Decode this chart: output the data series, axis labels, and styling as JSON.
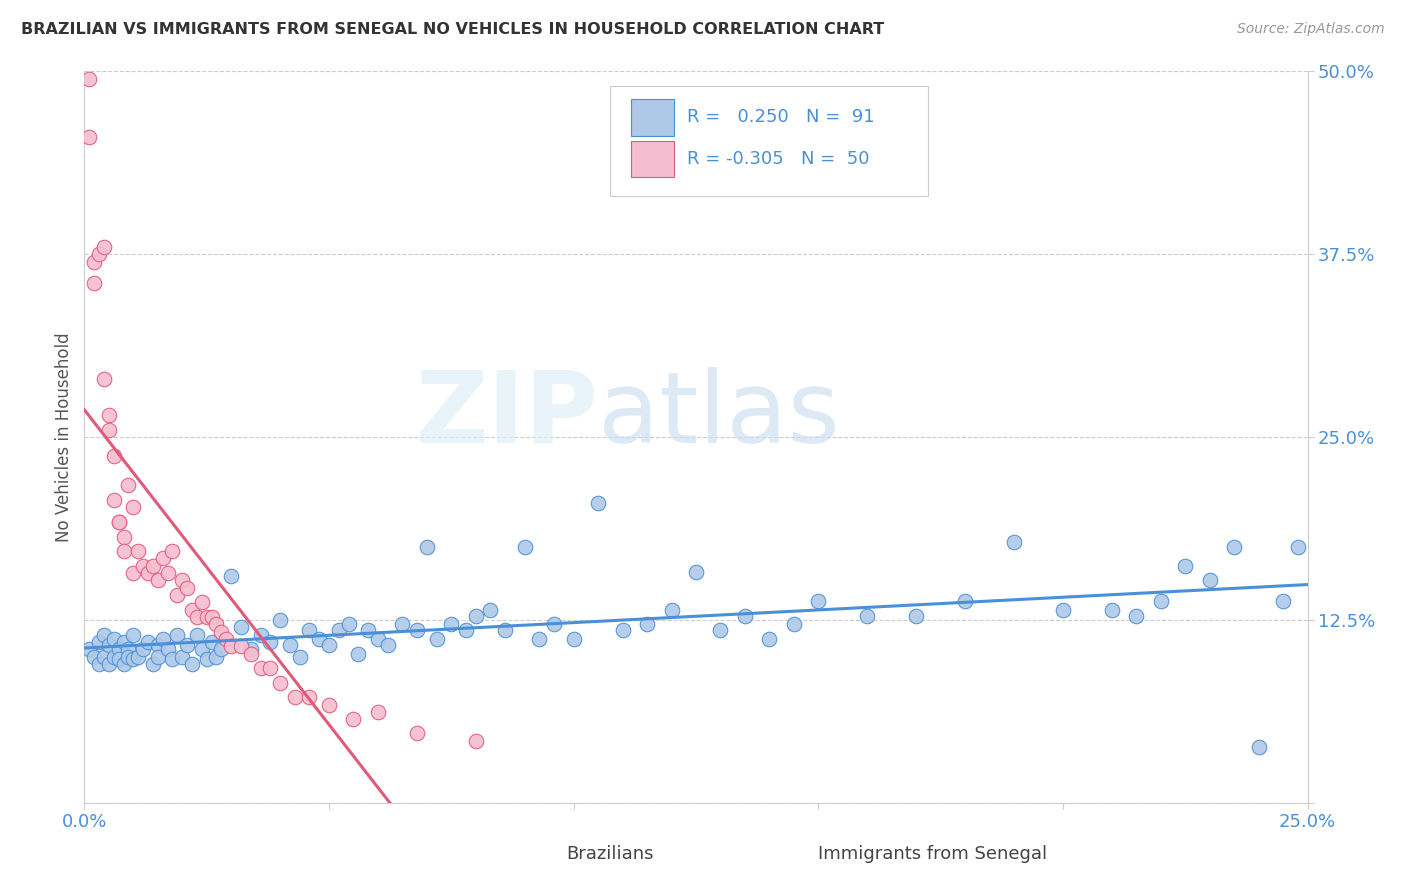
{
  "title": "BRAZILIAN VS IMMIGRANTS FROM SENEGAL NO VEHICLES IN HOUSEHOLD CORRELATION CHART",
  "source": "Source: ZipAtlas.com",
  "ylabel": "No Vehicles in Household",
  "x_min": 0.0,
  "x_max": 0.25,
  "y_min": 0.0,
  "y_max": 0.5,
  "y_ticks": [
    0.0,
    0.125,
    0.25,
    0.375,
    0.5
  ],
  "y_tick_labels": [
    "",
    "12.5%",
    "25.0%",
    "37.5%",
    "50.0%"
  ],
  "grid_color": "#cccccc",
  "background_color": "#ffffff",
  "brazilian_color": "#aec9e8",
  "senegal_color": "#f5bdd0",
  "brazilian_line_color": "#4a90d9",
  "senegal_line_color": "#e05a7a",
  "tick_label_color": "#4a90d9",
  "legend_r_brazilian": " 0.250",
  "legend_n_brazilian": "91",
  "legend_r_senegal": "-0.305",
  "legend_n_senegal": "50",
  "brazilian_x": [
    0.001,
    0.002,
    0.003,
    0.003,
    0.004,
    0.004,
    0.005,
    0.005,
    0.006,
    0.006,
    0.007,
    0.007,
    0.008,
    0.008,
    0.009,
    0.009,
    0.01,
    0.01,
    0.011,
    0.012,
    0.013,
    0.014,
    0.015,
    0.015,
    0.016,
    0.017,
    0.018,
    0.019,
    0.02,
    0.021,
    0.022,
    0.023,
    0.024,
    0.025,
    0.026,
    0.027,
    0.028,
    0.03,
    0.032,
    0.034,
    0.036,
    0.038,
    0.04,
    0.042,
    0.044,
    0.046,
    0.048,
    0.05,
    0.052,
    0.054,
    0.056,
    0.058,
    0.06,
    0.062,
    0.065,
    0.068,
    0.07,
    0.072,
    0.075,
    0.078,
    0.08,
    0.083,
    0.086,
    0.09,
    0.093,
    0.096,
    0.1,
    0.105,
    0.11,
    0.115,
    0.12,
    0.125,
    0.13,
    0.135,
    0.14,
    0.145,
    0.15,
    0.16,
    0.17,
    0.18,
    0.19,
    0.2,
    0.21,
    0.215,
    0.22,
    0.225,
    0.23,
    0.235,
    0.24,
    0.245,
    0.248
  ],
  "brazilian_y": [
    0.105,
    0.1,
    0.095,
    0.11,
    0.1,
    0.115,
    0.095,
    0.108,
    0.1,
    0.112,
    0.105,
    0.098,
    0.11,
    0.095,
    0.105,
    0.1,
    0.098,
    0.115,
    0.1,
    0.105,
    0.11,
    0.095,
    0.108,
    0.1,
    0.112,
    0.105,
    0.098,
    0.115,
    0.1,
    0.108,
    0.095,
    0.115,
    0.105,
    0.098,
    0.11,
    0.1,
    0.105,
    0.155,
    0.12,
    0.105,
    0.115,
    0.11,
    0.125,
    0.108,
    0.1,
    0.118,
    0.112,
    0.108,
    0.118,
    0.122,
    0.102,
    0.118,
    0.112,
    0.108,
    0.122,
    0.118,
    0.175,
    0.112,
    0.122,
    0.118,
    0.128,
    0.132,
    0.118,
    0.175,
    0.112,
    0.122,
    0.112,
    0.205,
    0.118,
    0.122,
    0.132,
    0.158,
    0.118,
    0.128,
    0.112,
    0.122,
    0.138,
    0.128,
    0.128,
    0.138,
    0.178,
    0.132,
    0.132,
    0.128,
    0.138,
    0.162,
    0.152,
    0.175,
    0.038,
    0.138,
    0.175
  ],
  "senegal_x": [
    0.001,
    0.001,
    0.002,
    0.002,
    0.003,
    0.004,
    0.004,
    0.005,
    0.005,
    0.006,
    0.006,
    0.007,
    0.007,
    0.008,
    0.008,
    0.009,
    0.01,
    0.01,
    0.011,
    0.012,
    0.013,
    0.014,
    0.015,
    0.016,
    0.017,
    0.018,
    0.019,
    0.02,
    0.021,
    0.022,
    0.023,
    0.024,
    0.025,
    0.026,
    0.027,
    0.028,
    0.029,
    0.03,
    0.032,
    0.034,
    0.036,
    0.038,
    0.04,
    0.043,
    0.046,
    0.05,
    0.055,
    0.06,
    0.068,
    0.08
  ],
  "senegal_y": [
    0.495,
    0.455,
    0.37,
    0.355,
    0.375,
    0.38,
    0.29,
    0.265,
    0.255,
    0.237,
    0.207,
    0.192,
    0.192,
    0.182,
    0.172,
    0.217,
    0.202,
    0.157,
    0.172,
    0.162,
    0.157,
    0.162,
    0.152,
    0.167,
    0.157,
    0.172,
    0.142,
    0.152,
    0.147,
    0.132,
    0.127,
    0.137,
    0.127,
    0.127,
    0.122,
    0.117,
    0.112,
    0.107,
    0.107,
    0.102,
    0.092,
    0.092,
    0.082,
    0.072,
    0.072,
    0.067,
    0.057,
    0.062,
    0.048,
    0.042
  ]
}
